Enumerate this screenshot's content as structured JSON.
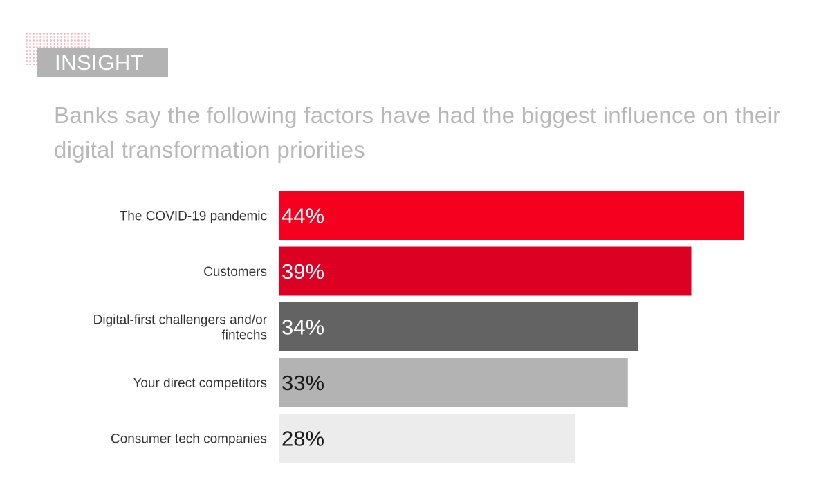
{
  "tag_label": "INSIGHT",
  "headline": "Banks say the following factors have had the biggest influence on their digital transformation priorities",
  "chart_data": {
    "type": "bar",
    "orientation": "horizontal",
    "categories": [
      "The COVID-19 pandemic",
      "Customers",
      [
        "Digital-first challengers and/or",
        "fintechs"
      ],
      "Your direct competitors",
      "Consumer tech companies"
    ],
    "values": [
      44,
      39,
      34,
      33,
      28
    ],
    "value_labels": [
      "44%",
      "39%",
      "34%",
      "33%",
      "28%"
    ],
    "unit": "%",
    "bar_colors": [
      "#f5001e",
      "#dc0023",
      "#636363",
      "#b3b3b3",
      "#ececec"
    ],
    "label_colors": [
      "#ffffff",
      "#ffffff",
      "#ffffff",
      "#1a1a1a",
      "#1a1a1a"
    ],
    "xlim": [
      0,
      44
    ],
    "grid": false,
    "legend": "none"
  }
}
